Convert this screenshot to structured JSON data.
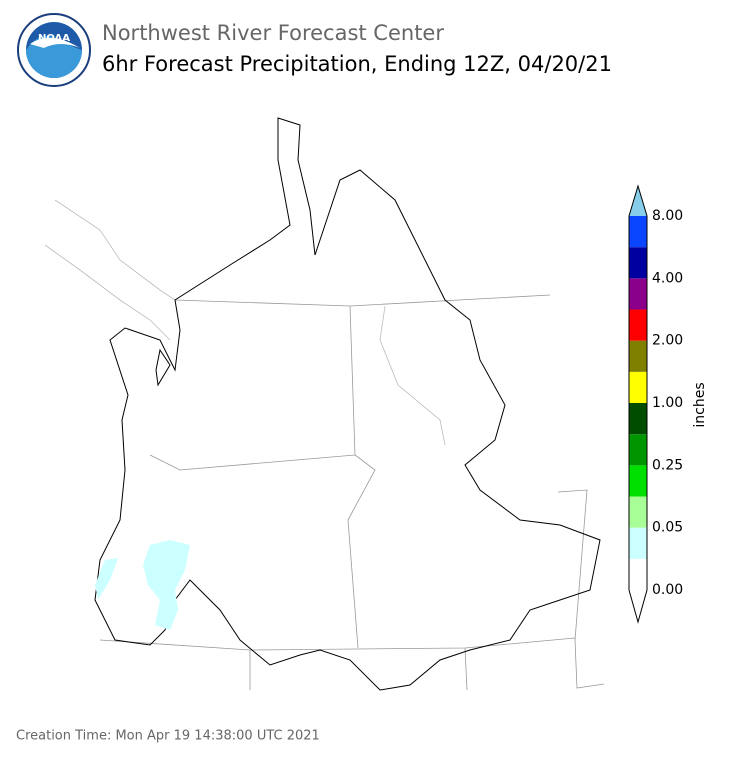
{
  "header": {
    "logo_text": "NOAA",
    "title": "Northwest River Forecast Center",
    "subtitle": "6hr Forecast Precipitation, Ending 12Z, 04/20/21"
  },
  "colorbar": {
    "unit": "inches",
    "labels": [
      "0.00",
      "0.05",
      "0.25",
      "1.00",
      "2.00",
      "4.00",
      "8.00"
    ],
    "colors": [
      "#ffffff",
      "#ccffff",
      "#a8ff98",
      "#00e000",
      "#009600",
      "#004d00",
      "#ffff00",
      "#7f7f00",
      "#ff0000",
      "#8b008b",
      "#0000a0",
      "#0a46ff"
    ],
    "under_color": "#ffffff",
    "over_color": "#87ceeb"
  },
  "footer": {
    "creation_time": "Creation Time: Mon Apr 19 14:38:00 UTC 2021"
  }
}
